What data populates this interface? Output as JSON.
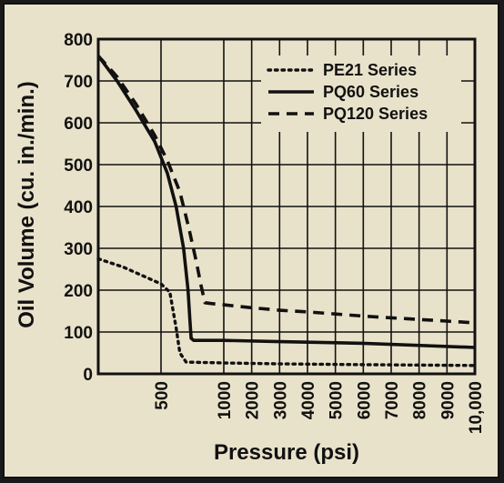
{
  "colors": {
    "background": "#e9e2ca",
    "ink": "#111111"
  },
  "chart_data": {
    "type": "line",
    "title": "",
    "xlabel": "Pressure (psi)",
    "ylabel": "Oil Volume (cu. in./min.)",
    "xlim": [
      0,
      10000
    ],
    "ylim": [
      0,
      800
    ],
    "x_scale": "piecewise linear: 0–1000 on the first third, 1000–10000 evenly spaced",
    "grid": true,
    "legend_position": "top-right",
    "x_ticks": [
      500,
      1000,
      2000,
      3000,
      4000,
      5000,
      6000,
      7000,
      8000,
      9000,
      10000
    ],
    "x_tick_labels": [
      "500",
      "1000",
      "2000",
      "3000",
      "4000",
      "5000",
      "6000",
      "7000",
      "8000",
      "9000",
      "10,000"
    ],
    "y_ticks": [
      0,
      100,
      200,
      300,
      400,
      500,
      600,
      700,
      800
    ],
    "y_tick_labels": [
      "0",
      "100",
      "200",
      "300",
      "400",
      "500",
      "600",
      "700",
      "800"
    ],
    "series": [
      {
        "name": "PE21 Series",
        "style": "dotted",
        "points": [
          [
            0,
            275
          ],
          [
            200,
            255
          ],
          [
            350,
            235
          ],
          [
            500,
            215
          ],
          [
            570,
            195
          ],
          [
            620,
            110
          ],
          [
            650,
            50
          ],
          [
            700,
            28
          ],
          [
            1000,
            26
          ],
          [
            3000,
            24
          ],
          [
            6000,
            22
          ],
          [
            10000,
            20
          ]
        ]
      },
      {
        "name": "PQ60 Series",
        "style": "solid",
        "points": [
          [
            0,
            760
          ],
          [
            150,
            700
          ],
          [
            300,
            630
          ],
          [
            450,
            555
          ],
          [
            550,
            480
          ],
          [
            620,
            400
          ],
          [
            680,
            300
          ],
          [
            715,
            200
          ],
          [
            730,
            130
          ],
          [
            740,
            85
          ],
          [
            760,
            80
          ],
          [
            1000,
            80
          ],
          [
            3000,
            77
          ],
          [
            6000,
            73
          ],
          [
            10000,
            63
          ]
        ]
      },
      {
        "name": "PQ120 Series",
        "style": "dashed",
        "points": [
          [
            0,
            760
          ],
          [
            150,
            710
          ],
          [
            300,
            645
          ],
          [
            450,
            570
          ],
          [
            550,
            510
          ],
          [
            650,
            435
          ],
          [
            720,
            350
          ],
          [
            780,
            270
          ],
          [
            820,
            210
          ],
          [
            850,
            170
          ],
          [
            900,
            168
          ],
          [
            1000,
            165
          ],
          [
            2000,
            158
          ],
          [
            3000,
            152
          ],
          [
            4000,
            148
          ],
          [
            5000,
            143
          ],
          [
            6000,
            138
          ],
          [
            7000,
            134
          ],
          [
            8000,
            130
          ],
          [
            9000,
            126
          ],
          [
            10000,
            122
          ]
        ]
      }
    ]
  }
}
